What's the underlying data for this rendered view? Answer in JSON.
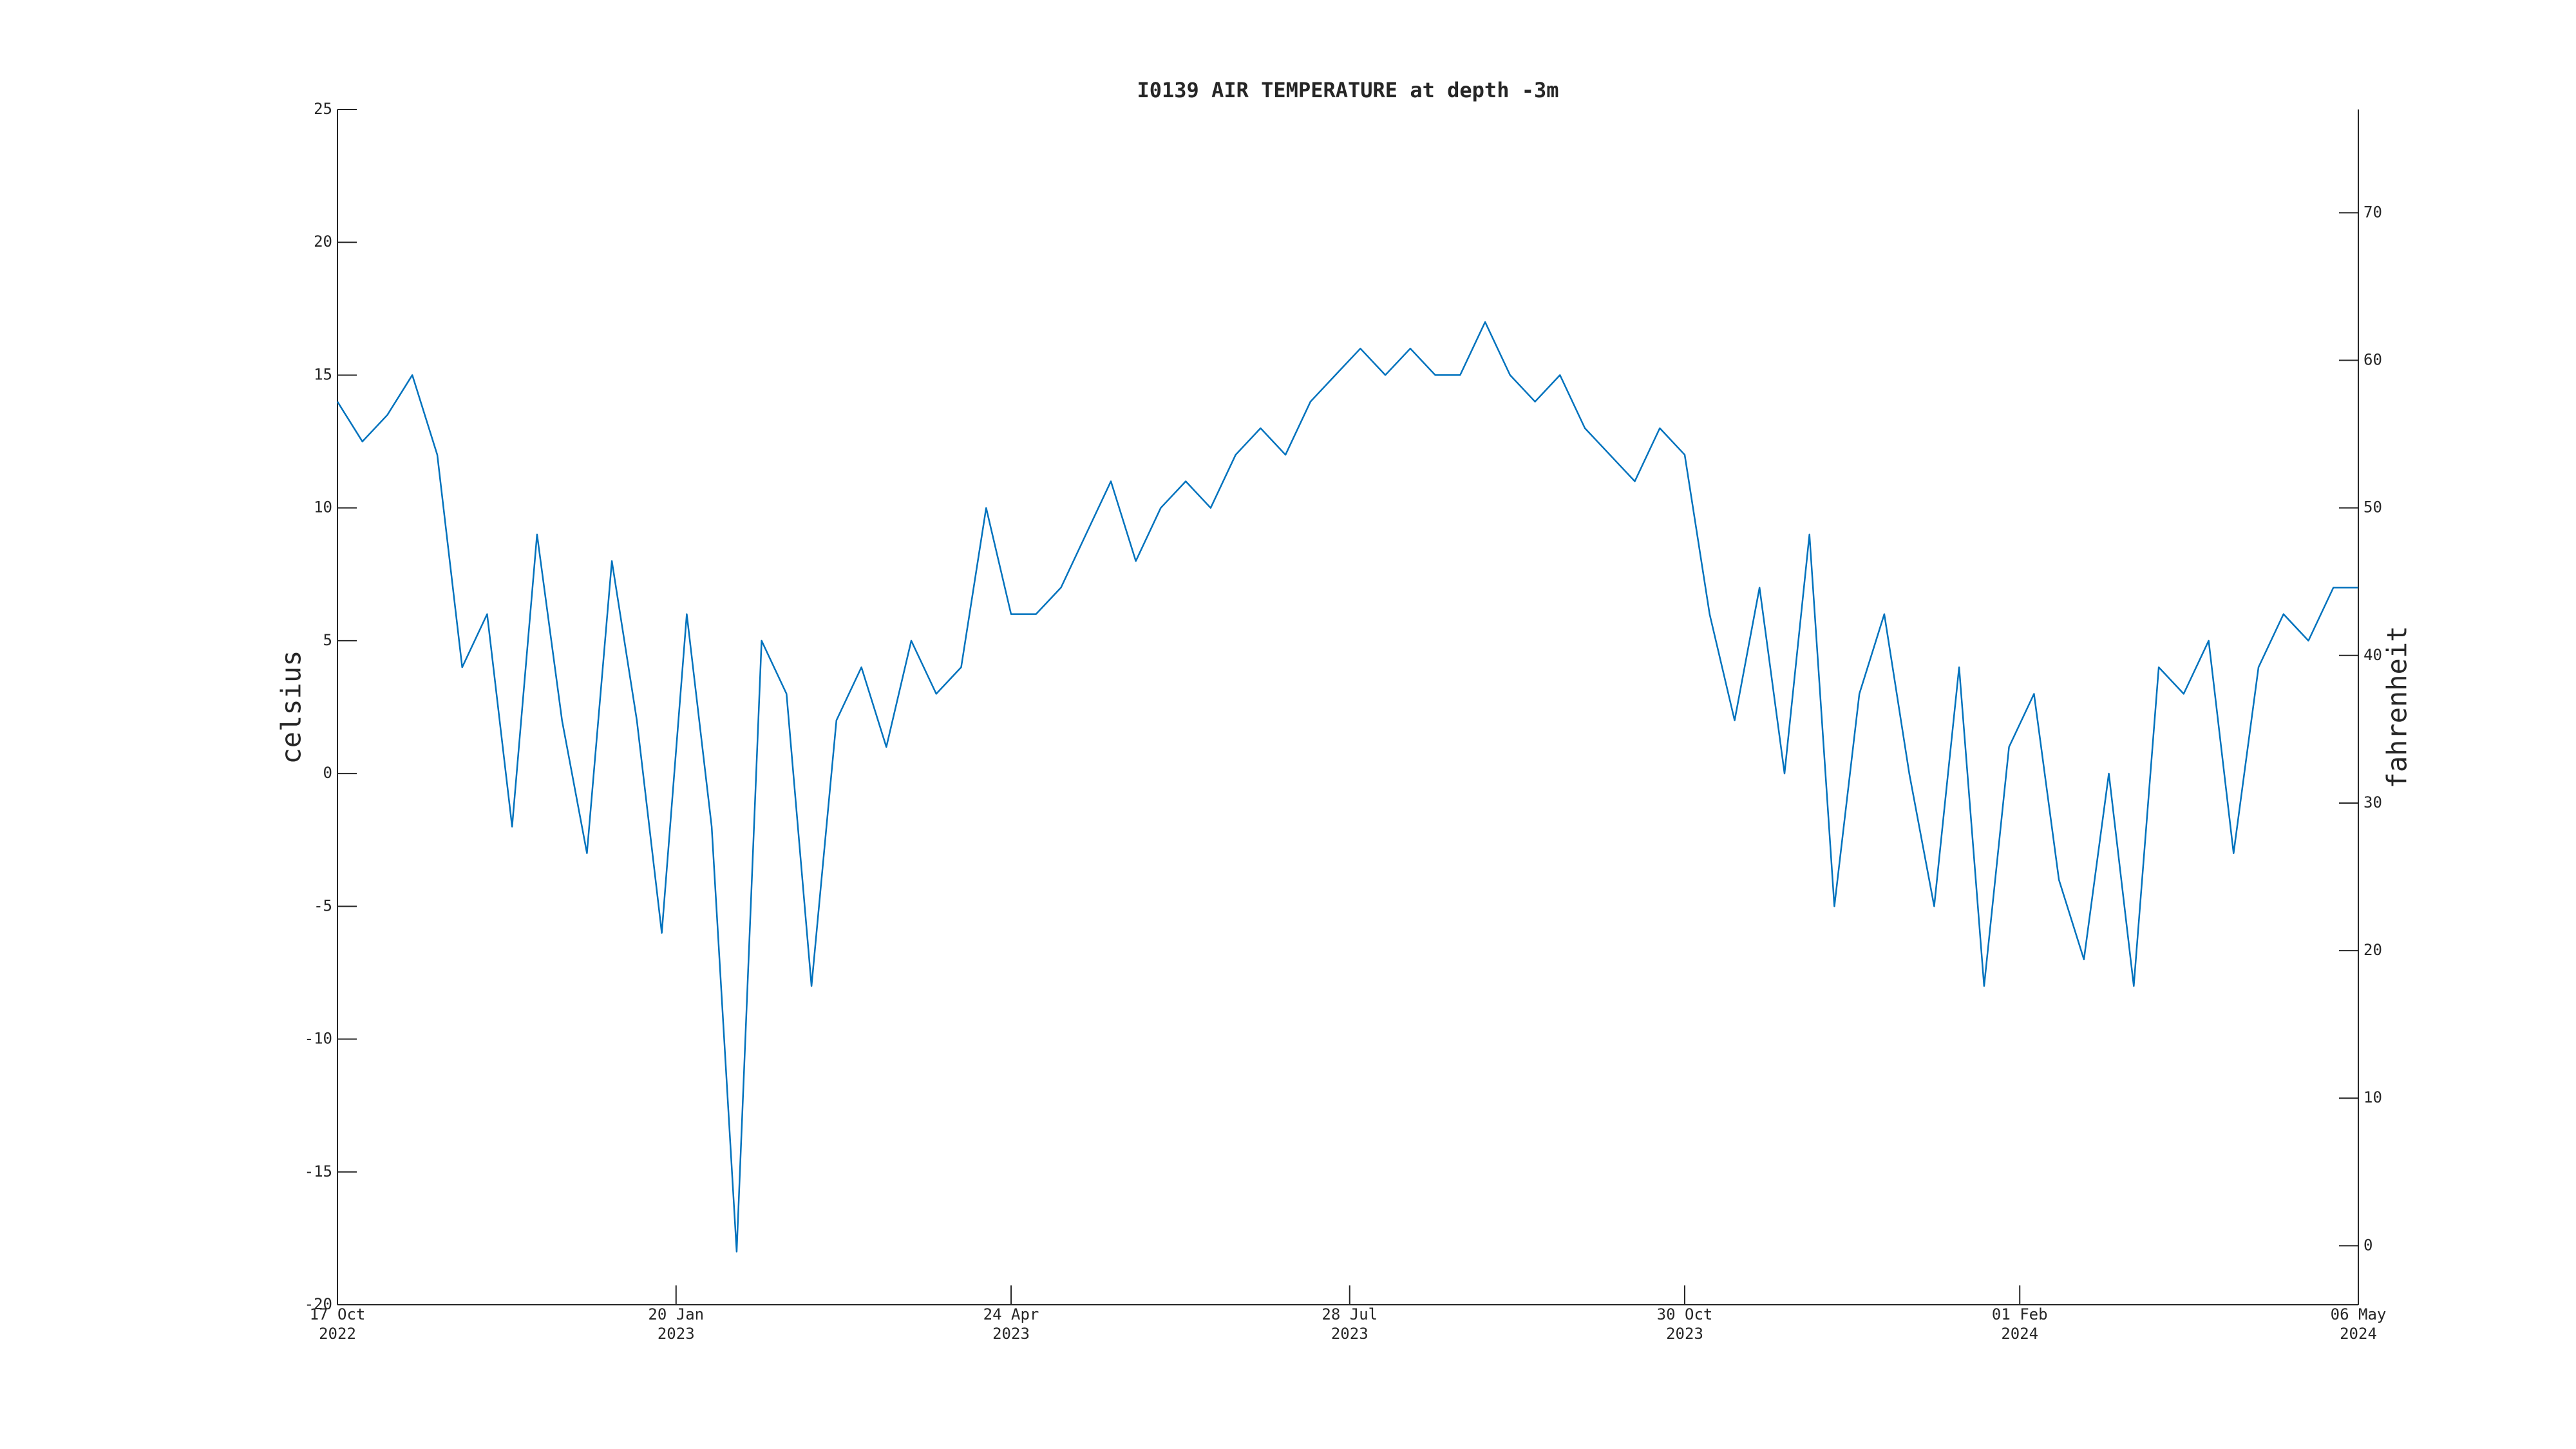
{
  "chart_data": {
    "type": "line",
    "title": "I0139 AIR TEMPERATURE at depth -3m",
    "ylabel": "celsius",
    "y2label": "fahrenheit",
    "color": "#0072bd",
    "xlim": [
      "2022-10-17",
      "2024-05-06"
    ],
    "xticks": [
      {
        "value": "2022-10-17",
        "label": "17 Oct\n2022"
      },
      {
        "value": "2023-01-20",
        "label": "20 Jan\n2023"
      },
      {
        "value": "2023-04-24",
        "label": "24 Apr\n2023"
      },
      {
        "value": "2023-07-28",
        "label": "28 Jul\n2023"
      },
      {
        "value": "2023-10-30",
        "label": "30 Oct\n2023"
      },
      {
        "value": "2024-02-01",
        "label": "01 Feb\n2024"
      },
      {
        "value": "2024-05-06",
        "label": "06 May\n2024"
      }
    ],
    "ylim": [
      -20,
      25
    ],
    "yticks": [
      -20,
      -15,
      -10,
      -5,
      0,
      5,
      10,
      15,
      20,
      25
    ],
    "y2lim": [
      -4,
      77
    ],
    "y2ticks": [
      0,
      10,
      20,
      30,
      40,
      50,
      60,
      70
    ],
    "x": [
      "2022-10-17",
      "2022-10-24",
      "2022-10-31",
      "2022-11-07",
      "2022-11-14",
      "2022-11-21",
      "2022-11-28",
      "2022-12-05",
      "2022-12-12",
      "2022-12-19",
      "2022-12-26",
      "2023-01-02",
      "2023-01-09",
      "2023-01-16",
      "2023-01-23",
      "2023-01-30",
      "2023-02-06",
      "2023-02-13",
      "2023-02-20",
      "2023-02-27",
      "2023-03-06",
      "2023-03-13",
      "2023-03-20",
      "2023-03-27",
      "2023-04-03",
      "2023-04-10",
      "2023-04-17",
      "2023-04-24",
      "2023-05-01",
      "2023-05-08",
      "2023-05-15",
      "2023-05-22",
      "2023-05-29",
      "2023-06-05",
      "2023-06-12",
      "2023-06-19",
      "2023-06-26",
      "2023-07-03",
      "2023-07-10",
      "2023-07-17",
      "2023-07-24",
      "2023-07-31",
      "2023-08-07",
      "2023-08-14",
      "2023-08-21",
      "2023-08-28",
      "2023-09-04",
      "2023-09-11",
      "2023-09-18",
      "2023-09-25",
      "2023-10-02",
      "2023-10-09",
      "2023-10-16",
      "2023-10-23",
      "2023-10-30",
      "2023-11-06",
      "2023-11-13",
      "2023-11-20",
      "2023-11-27",
      "2023-12-04",
      "2023-12-11",
      "2023-12-18",
      "2023-12-25",
      "2024-01-01",
      "2024-01-08",
      "2024-01-15",
      "2024-01-22",
      "2024-01-29",
      "2024-02-05",
      "2024-02-12",
      "2024-02-19",
      "2024-02-26",
      "2024-03-04",
      "2024-03-11",
      "2024-03-18",
      "2024-03-25",
      "2024-04-01",
      "2024-04-08",
      "2024-04-15",
      "2024-04-22",
      "2024-04-29",
      "2024-05-06"
    ],
    "values": [
      14,
      12.5,
      13.5,
      15,
      12,
      4,
      6,
      -2,
      9,
      2,
      -3,
      8,
      2,
      -6,
      6,
      -2,
      -18,
      5,
      3,
      -8,
      2,
      4,
      1,
      5,
      3,
      4,
      10,
      6,
      6,
      7,
      9,
      11,
      8,
      10,
      11,
      10,
      12,
      13,
      12,
      14,
      15,
      16,
      15,
      16,
      15,
      15,
      17,
      15,
      14,
      15,
      13,
      12,
      11,
      13,
      12,
      6,
      2,
      7,
      0,
      9,
      -5,
      3,
      6,
      0,
      -5,
      4,
      -8,
      1,
      3,
      -4,
      -7,
      0,
      -8,
      4,
      3,
      5,
      -3,
      4,
      6,
      5,
      7,
      7
    ]
  }
}
